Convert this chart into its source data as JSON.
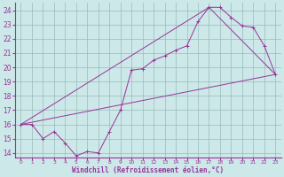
{
  "xlabel": "Windchill (Refroidissement éolien,°C)",
  "xlim": [
    -0.5,
    23.5
  ],
  "ylim": [
    13.7,
    24.5
  ],
  "xticks": [
    0,
    1,
    2,
    3,
    4,
    5,
    6,
    7,
    8,
    9,
    10,
    11,
    12,
    13,
    14,
    15,
    16,
    17,
    18,
    19,
    20,
    21,
    22,
    23
  ],
  "yticks": [
    14,
    15,
    16,
    17,
    18,
    19,
    20,
    21,
    22,
    23,
    24
  ],
  "bg_color": "#cce8e8",
  "line_color": "#993399",
  "grid_color": "#99bbbb",
  "line1_x": [
    0,
    1,
    2,
    3,
    4,
    5,
    6,
    7,
    8,
    9,
    10,
    11,
    12,
    13,
    14,
    15,
    16,
    17,
    18,
    19,
    20,
    21,
    22,
    23
  ],
  "line1_y": [
    16.0,
    16.0,
    15.0,
    15.5,
    14.7,
    13.8,
    14.1,
    14.0,
    15.5,
    17.0,
    19.8,
    19.9,
    20.5,
    20.8,
    21.2,
    21.5,
    23.2,
    24.2,
    24.2,
    23.5,
    22.9,
    22.8,
    21.5,
    19.5
  ],
  "line2_x": [
    0,
    23
  ],
  "line2_y": [
    16.0,
    19.5
  ],
  "line3_x": [
    0,
    17,
    23
  ],
  "line3_y": [
    16.0,
    24.2,
    19.5
  ]
}
